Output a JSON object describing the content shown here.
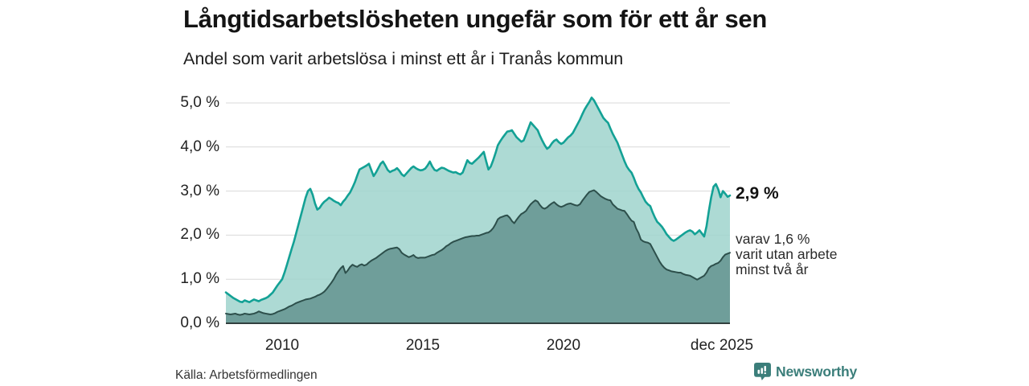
{
  "header": {
    "title": "Långtidsarbetslösheten ungefär som för ett år sen",
    "subtitle": "Andel som varit arbetslösa i minst ett år i Tranås kommun"
  },
  "chart_data": {
    "type": "area",
    "title": "Långtidsarbetslösheten ungefär som för ett år sen",
    "subtitle": "Andel som varit arbetslösa i minst ett år i Tranås kommun",
    "unit": "%",
    "x_interval": "monthly",
    "x_start": "2008-01",
    "x_end": "2025-12",
    "ylim": [
      0,
      5.5
    ],
    "grid": "horizontal",
    "legend_position": "none",
    "y_ticks": [
      {
        "value": 5,
        "label": "5,0 %"
      },
      {
        "value": 4,
        "label": "4,0 %"
      },
      {
        "value": 3,
        "label": "3,0 %"
      },
      {
        "value": 2,
        "label": "2,0 %"
      },
      {
        "value": 1,
        "label": "1,0 %"
      },
      {
        "value": 0,
        "label": "0,0 %"
      }
    ],
    "x_ticks": [
      {
        "label": "2010",
        "index": 24
      },
      {
        "label": "2015",
        "index": 84
      },
      {
        "label": "2020",
        "index": 144
      },
      {
        "label": "dec 2025",
        "index": 215
      }
    ],
    "series": [
      {
        "name": "Arbetslösa minst ett år",
        "line_color": "#13a195",
        "fill_color": "#9fd3cc",
        "fill_opacity": 0.85,
        "line_width": 2.6,
        "end_value": 2.9,
        "values": [
          0.7,
          0.66,
          0.62,
          0.58,
          0.55,
          0.52,
          0.49,
          0.48,
          0.52,
          0.5,
          0.48,
          0.51,
          0.54,
          0.52,
          0.5,
          0.53,
          0.55,
          0.57,
          0.6,
          0.65,
          0.7,
          0.78,
          0.86,
          0.93,
          1.0,
          1.15,
          1.32,
          1.5,
          1.68,
          1.85,
          2.05,
          2.25,
          2.45,
          2.65,
          2.85,
          3.0,
          3.05,
          2.92,
          2.72,
          2.58,
          2.62,
          2.7,
          2.76,
          2.8,
          2.85,
          2.82,
          2.78,
          2.75,
          2.73,
          2.68,
          2.76,
          2.82,
          2.9,
          2.97,
          3.08,
          3.2,
          3.35,
          3.49,
          3.52,
          3.55,
          3.58,
          3.62,
          3.48,
          3.34,
          3.42,
          3.52,
          3.62,
          3.67,
          3.58,
          3.48,
          3.43,
          3.46,
          3.48,
          3.52,
          3.46,
          3.38,
          3.34,
          3.4,
          3.46,
          3.52,
          3.56,
          3.52,
          3.49,
          3.47,
          3.48,
          3.51,
          3.58,
          3.67,
          3.56,
          3.48,
          3.46,
          3.5,
          3.53,
          3.52,
          3.49,
          3.46,
          3.44,
          3.42,
          3.43,
          3.4,
          3.38,
          3.42,
          3.56,
          3.7,
          3.64,
          3.62,
          3.67,
          3.72,
          3.77,
          3.83,
          3.89,
          3.68,
          3.49,
          3.56,
          3.7,
          3.86,
          4.04,
          4.13,
          4.21,
          4.28,
          4.35,
          4.36,
          4.38,
          4.3,
          4.22,
          4.17,
          4.12,
          4.15,
          4.28,
          4.42,
          4.56,
          4.5,
          4.44,
          4.38,
          4.25,
          4.14,
          4.04,
          3.96,
          4.0,
          4.08,
          4.14,
          4.17,
          4.11,
          4.07,
          4.1,
          4.16,
          4.22,
          4.26,
          4.32,
          4.42,
          4.52,
          4.62,
          4.74,
          4.85,
          4.94,
          5.02,
          5.12,
          5.06,
          4.96,
          4.86,
          4.76,
          4.66,
          4.6,
          4.55,
          4.42,
          4.3,
          4.2,
          4.1,
          3.96,
          3.82,
          3.68,
          3.56,
          3.48,
          3.42,
          3.3,
          3.16,
          3.05,
          2.97,
          2.86,
          2.76,
          2.7,
          2.66,
          2.52,
          2.4,
          2.3,
          2.25,
          2.19,
          2.11,
          2.02,
          1.96,
          1.9,
          1.87,
          1.9,
          1.94,
          1.98,
          2.02,
          2.06,
          2.09,
          2.11,
          2.08,
          2.02,
          2.06,
          2.11,
          2.04,
          1.97,
          2.2,
          2.55,
          2.86,
          3.1,
          3.16,
          3.04,
          2.86,
          3.0,
          2.94,
          2.87,
          2.9
        ]
      },
      {
        "name": "Arbetslösa minst två år",
        "line_color": "#2d4f4b",
        "fill_color": "#6f9e9a",
        "fill_opacity": 1,
        "line_width": 2,
        "end_value": 1.6,
        "values": [
          0.22,
          0.21,
          0.2,
          0.21,
          0.22,
          0.2,
          0.19,
          0.2,
          0.22,
          0.21,
          0.2,
          0.21,
          0.22,
          0.24,
          0.27,
          0.25,
          0.23,
          0.22,
          0.21,
          0.2,
          0.21,
          0.23,
          0.26,
          0.28,
          0.3,
          0.32,
          0.35,
          0.38,
          0.4,
          0.43,
          0.46,
          0.48,
          0.5,
          0.52,
          0.54,
          0.55,
          0.56,
          0.58,
          0.6,
          0.63,
          0.65,
          0.68,
          0.72,
          0.78,
          0.85,
          0.92,
          1.0,
          1.1,
          1.18,
          1.25,
          1.3,
          1.14,
          1.2,
          1.28,
          1.33,
          1.3,
          1.28,
          1.32,
          1.34,
          1.31,
          1.33,
          1.38,
          1.42,
          1.45,
          1.48,
          1.52,
          1.56,
          1.6,
          1.64,
          1.67,
          1.69,
          1.7,
          1.71,
          1.72,
          1.68,
          1.6,
          1.56,
          1.53,
          1.5,
          1.52,
          1.55,
          1.5,
          1.48,
          1.49,
          1.49,
          1.49,
          1.51,
          1.53,
          1.55,
          1.56,
          1.6,
          1.63,
          1.66,
          1.7,
          1.75,
          1.78,
          1.82,
          1.85,
          1.87,
          1.89,
          1.91,
          1.93,
          1.95,
          1.96,
          1.97,
          1.98,
          1.98,
          1.99,
          1.99,
          2.01,
          2.03,
          2.05,
          2.06,
          2.1,
          2.16,
          2.25,
          2.36,
          2.4,
          2.42,
          2.44,
          2.45,
          2.4,
          2.32,
          2.27,
          2.35,
          2.42,
          2.48,
          2.51,
          2.55,
          2.63,
          2.7,
          2.75,
          2.79,
          2.76,
          2.68,
          2.62,
          2.6,
          2.63,
          2.68,
          2.72,
          2.75,
          2.7,
          2.66,
          2.64,
          2.66,
          2.69,
          2.71,
          2.72,
          2.7,
          2.68,
          2.67,
          2.7,
          2.78,
          2.85,
          2.92,
          2.98,
          3.0,
          3.02,
          2.98,
          2.93,
          2.88,
          2.85,
          2.82,
          2.8,
          2.79,
          2.7,
          2.65,
          2.6,
          2.58,
          2.56,
          2.55,
          2.48,
          2.4,
          2.33,
          2.3,
          2.15,
          2.05,
          1.9,
          1.86,
          1.84,
          1.83,
          1.8,
          1.7,
          1.6,
          1.5,
          1.4,
          1.32,
          1.26,
          1.22,
          1.2,
          1.18,
          1.17,
          1.16,
          1.15,
          1.15,
          1.12,
          1.1,
          1.09,
          1.08,
          1.05,
          1.02,
          0.99,
          1.02,
          1.05,
          1.08,
          1.15,
          1.25,
          1.3,
          1.32,
          1.35,
          1.37,
          1.42,
          1.5,
          1.56,
          1.58,
          1.6
        ]
      }
    ],
    "annotations": {
      "end_label": "2,9 %",
      "secondary_line1": "varav 1,6 %",
      "secondary_line2": "varit utan arbete",
      "secondary_line3": "minst två år"
    },
    "colors": {
      "gridline": "#d9d9d9",
      "baseline": "#32403e",
      "axis_text": "#222222"
    }
  },
  "footer": {
    "source": "Källa: Arbetsförmedlingen",
    "brand": "Newsworthy",
    "brand_color": "#3b7e7a"
  }
}
